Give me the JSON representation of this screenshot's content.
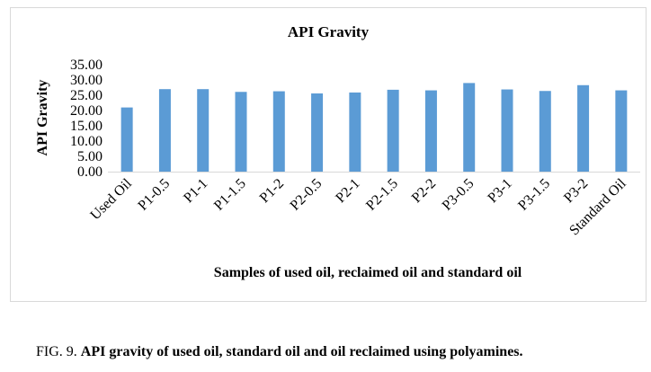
{
  "chart_data": {
    "type": "bar",
    "title": "API Gravity",
    "xlabel": "Samples of used oil, reclaimed oil and standard oil",
    "ylabel": "API Gravity",
    "ylim": [
      0,
      35
    ],
    "y_ticks": [
      "0.00",
      "5.00",
      "10.00",
      "15.00",
      "20.00",
      "25.00",
      "30.00",
      "35.00"
    ],
    "grid": false,
    "legend": "none",
    "bar_color": "#5b9bd5",
    "categories": [
      "Used Oil",
      "P1-0.5",
      "P1-1",
      "P1-1.5",
      "P1-2",
      "P2-0.5",
      "P2-1",
      "P2-1.5",
      "P2-2",
      "P3-0.5",
      "P3-1",
      "P3-1.5",
      "P3-2",
      "Standard Oil"
    ],
    "values": [
      21.0,
      27.0,
      27.0,
      26.1,
      26.3,
      25.6,
      25.9,
      26.8,
      26.6,
      29.0,
      26.9,
      26.4,
      28.3,
      26.6
    ]
  },
  "caption": {
    "label": "FIG. 9.",
    "text": "API gravity of used oil, standard oil and oil reclaimed using polyamines."
  }
}
